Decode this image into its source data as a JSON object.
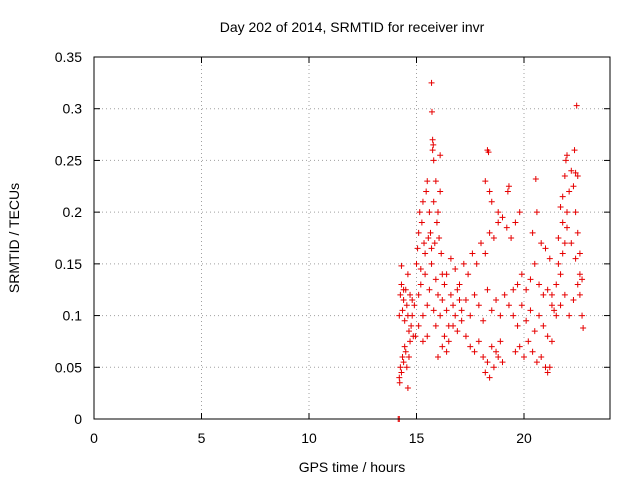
{
  "chart_data": {
    "type": "scatter",
    "title": "Day 202 of 2014, SRMTID for receiver invr",
    "xlabel": "GPS time / hours",
    "ylabel": "SRMTID / TECUs",
    "xlim": [
      0,
      24
    ],
    "ylim": [
      0,
      0.35
    ],
    "xticks": [
      0,
      5,
      10,
      15,
      20
    ],
    "yticks": [
      0,
      0.05,
      0.1,
      0.15,
      0.2,
      0.25,
      0.3,
      0.35
    ],
    "grid": true,
    "legend": "none",
    "marker": "plus",
    "color": "#e60000",
    "series": [
      {
        "points": [
          [
            14.15,
            0.0
          ],
          [
            14.2,
            0.0
          ],
          [
            14.2,
            0.04
          ],
          [
            14.22,
            0.035
          ],
          [
            14.25,
            0.05
          ],
          [
            14.3,
            0.045
          ],
          [
            14.35,
            0.06
          ],
          [
            14.4,
            0.055
          ],
          [
            14.45,
            0.07
          ],
          [
            14.5,
            0.065
          ],
          [
            14.55,
            0.05
          ],
          [
            14.6,
            0.03
          ],
          [
            14.65,
            0.06
          ],
          [
            14.7,
            0.075
          ],
          [
            14.2,
            0.1
          ],
          [
            14.25,
            0.12
          ],
          [
            14.3,
            0.13
          ],
          [
            14.35,
            0.105
          ],
          [
            14.4,
            0.115
          ],
          [
            14.45,
            0.095
          ],
          [
            14.5,
            0.125
          ],
          [
            14.55,
            0.11
          ],
          [
            14.6,
            0.1
          ],
          [
            14.65,
            0.085
          ],
          [
            14.7,
            0.12
          ],
          [
            14.75,
            0.09
          ],
          [
            14.8,
            0.1
          ],
          [
            14.85,
            0.08
          ],
          [
            14.9,
            0.11
          ],
          [
            14.3,
            0.148
          ],
          [
            14.4,
            0.125
          ],
          [
            14.6,
            0.14
          ],
          [
            14.8,
            0.115
          ],
          [
            15.0,
            0.15
          ],
          [
            15.05,
            0.165
          ],
          [
            15.1,
            0.18
          ],
          [
            15.15,
            0.2
          ],
          [
            15.2,
            0.145
          ],
          [
            15.25,
            0.19
          ],
          [
            15.3,
            0.21
          ],
          [
            15.35,
            0.17
          ],
          [
            15.4,
            0.16
          ],
          [
            15.45,
            0.22
          ],
          [
            15.5,
            0.23
          ],
          [
            15.55,
            0.175
          ],
          [
            15.6,
            0.2
          ],
          [
            15.65,
            0.18
          ],
          [
            15.7,
            0.165
          ],
          [
            15.75,
            0.26
          ],
          [
            15.8,
            0.21
          ],
          [
            15.85,
            0.17
          ],
          [
            15.9,
            0.23
          ],
          [
            15.95,
            0.19
          ],
          [
            16.0,
            0.2
          ],
          [
            16.05,
            0.175
          ],
          [
            16.1,
            0.22
          ],
          [
            16.15,
            0.16
          ],
          [
            16.2,
            0.14
          ],
          [
            15.7,
            0.325
          ],
          [
            15.72,
            0.297
          ],
          [
            15.75,
            0.27
          ],
          [
            15.78,
            0.265
          ],
          [
            15.8,
            0.25
          ],
          [
            16.1,
            0.255
          ],
          [
            15.1,
            0.12
          ],
          [
            15.2,
            0.13
          ],
          [
            15.3,
            0.1
          ],
          [
            15.4,
            0.14
          ],
          [
            15.5,
            0.11
          ],
          [
            15.6,
            0.125
          ],
          [
            15.7,
            0.15
          ],
          [
            15.8,
            0.105
          ],
          [
            15.9,
            0.135
          ],
          [
            16.0,
            0.12
          ],
          [
            16.1,
            0.1
          ],
          [
            16.2,
            0.115
          ],
          [
            16.3,
            0.13
          ],
          [
            16.4,
            0.105
          ],
          [
            16.5,
            0.09
          ],
          [
            16.6,
            0.12
          ],
          [
            16.7,
            0.11
          ],
          [
            16.8,
            0.1
          ],
          [
            16.9,
            0.125
          ],
          [
            17.0,
            0.115
          ],
          [
            16.3,
            0.08
          ],
          [
            16.5,
            0.075
          ],
          [
            16.7,
            0.09
          ],
          [
            16.9,
            0.085
          ],
          [
            17.1,
            0.095
          ],
          [
            17.3,
            0.08
          ],
          [
            17.5,
            0.07
          ],
          [
            17.7,
            0.065
          ],
          [
            17.9,
            0.075
          ],
          [
            18.1,
            0.06
          ],
          [
            18.3,
            0.055
          ],
          [
            18.5,
            0.07
          ],
          [
            18.7,
            0.065
          ],
          [
            18.9,
            0.075
          ],
          [
            16.4,
            0.14
          ],
          [
            16.6,
            0.155
          ],
          [
            16.8,
            0.145
          ],
          [
            17.0,
            0.13
          ],
          [
            17.2,
            0.15
          ],
          [
            17.4,
            0.14
          ],
          [
            17.6,
            0.16
          ],
          [
            17.8,
            0.15
          ],
          [
            18.0,
            0.17
          ],
          [
            18.2,
            0.16
          ],
          [
            18.4,
            0.18
          ],
          [
            18.6,
            0.175
          ],
          [
            18.8,
            0.19
          ],
          [
            17.1,
            0.105
          ],
          [
            17.3,
            0.115
          ],
          [
            17.5,
            0.1
          ],
          [
            17.7,
            0.12
          ],
          [
            17.9,
            0.11
          ],
          [
            18.1,
            0.095
          ],
          [
            18.3,
            0.125
          ],
          [
            18.5,
            0.105
          ],
          [
            18.7,
            0.115
          ],
          [
            18.9,
            0.1
          ],
          [
            19.1,
            0.12
          ],
          [
            19.3,
            0.11
          ],
          [
            19.5,
            0.125
          ],
          [
            18.2,
            0.045
          ],
          [
            18.4,
            0.04
          ],
          [
            18.6,
            0.05
          ],
          [
            18.8,
            0.06
          ],
          [
            19.0,
            0.055
          ],
          [
            18.3,
            0.26
          ],
          [
            18.35,
            0.258
          ],
          [
            18.4,
            0.22
          ],
          [
            18.5,
            0.21
          ],
          [
            18.2,
            0.23
          ],
          [
            19.3,
            0.225
          ],
          [
            19.25,
            0.22
          ],
          [
            18.8,
            0.2
          ],
          [
            19.0,
            0.195
          ],
          [
            19.2,
            0.185
          ],
          [
            19.4,
            0.175
          ],
          [
            19.6,
            0.19
          ],
          [
            19.8,
            0.2
          ],
          [
            19.5,
            0.1
          ],
          [
            19.7,
            0.09
          ],
          [
            19.9,
            0.11
          ],
          [
            20.1,
            0.095
          ],
          [
            20.3,
            0.105
          ],
          [
            20.5,
            0.085
          ],
          [
            20.7,
            0.1
          ],
          [
            20.9,
            0.09
          ],
          [
            21.1,
            0.08
          ],
          [
            21.3,
            0.075
          ],
          [
            19.6,
            0.065
          ],
          [
            19.8,
            0.07
          ],
          [
            20.0,
            0.06
          ],
          [
            20.2,
            0.075
          ],
          [
            20.4,
            0.065
          ],
          [
            20.6,
            0.055
          ],
          [
            20.8,
            0.06
          ],
          [
            21.0,
            0.05
          ],
          [
            21.1,
            0.045
          ],
          [
            21.2,
            0.05
          ],
          [
            19.7,
            0.13
          ],
          [
            19.9,
            0.14
          ],
          [
            20.1,
            0.125
          ],
          [
            20.3,
            0.135
          ],
          [
            20.5,
            0.15
          ],
          [
            20.7,
            0.13
          ],
          [
            20.9,
            0.12
          ],
          [
            21.1,
            0.125
          ],
          [
            21.3,
            0.11
          ],
          [
            20.4,
            0.18
          ],
          [
            20.55,
            0.232
          ],
          [
            20.6,
            0.2
          ],
          [
            20.8,
            0.17
          ],
          [
            21.0,
            0.165
          ],
          [
            21.2,
            0.155
          ],
          [
            21.3,
            0.12
          ],
          [
            21.4,
            0.105
          ],
          [
            21.5,
            0.13
          ],
          [
            21.6,
            0.15
          ],
          [
            21.7,
            0.14
          ],
          [
            21.8,
            0.16
          ],
          [
            21.9,
            0.17
          ],
          [
            22.0,
            0.2
          ],
          [
            22.1,
            0.22
          ],
          [
            22.2,
            0.24
          ],
          [
            22.3,
            0.225
          ],
          [
            22.4,
            0.2
          ],
          [
            22.5,
            0.18
          ],
          [
            22.6,
            0.16
          ],
          [
            21.7,
            0.205
          ],
          [
            21.8,
            0.215
          ],
          [
            21.9,
            0.235
          ],
          [
            21.95,
            0.25
          ],
          [
            22.0,
            0.255
          ],
          [
            22.35,
            0.26
          ],
          [
            22.4,
            0.238
          ],
          [
            22.5,
            0.235
          ],
          [
            22.45,
            0.303
          ],
          [
            21.5,
            0.1
          ],
          [
            21.7,
            0.11
          ],
          [
            21.9,
            0.12
          ],
          [
            22.1,
            0.1
          ],
          [
            22.3,
            0.115
          ],
          [
            22.5,
            0.13
          ],
          [
            22.6,
            0.12
          ],
          [
            22.7,
            0.135
          ],
          [
            22.7,
            0.1
          ],
          [
            22.75,
            0.088
          ],
          [
            21.6,
            0.175
          ],
          [
            21.8,
            0.19
          ],
          [
            22.0,
            0.185
          ],
          [
            22.2,
            0.17
          ],
          [
            22.4,
            0.155
          ],
          [
            22.6,
            0.14
          ],
          [
            16.0,
            0.06
          ],
          [
            16.2,
            0.07
          ],
          [
            16.4,
            0.065
          ],
          [
            15.9,
            0.09
          ],
          [
            15.5,
            0.08
          ],
          [
            15.3,
            0.075
          ],
          [
            15.1,
            0.09
          ],
          [
            14.95,
            0.08
          ]
        ]
      }
    ]
  }
}
